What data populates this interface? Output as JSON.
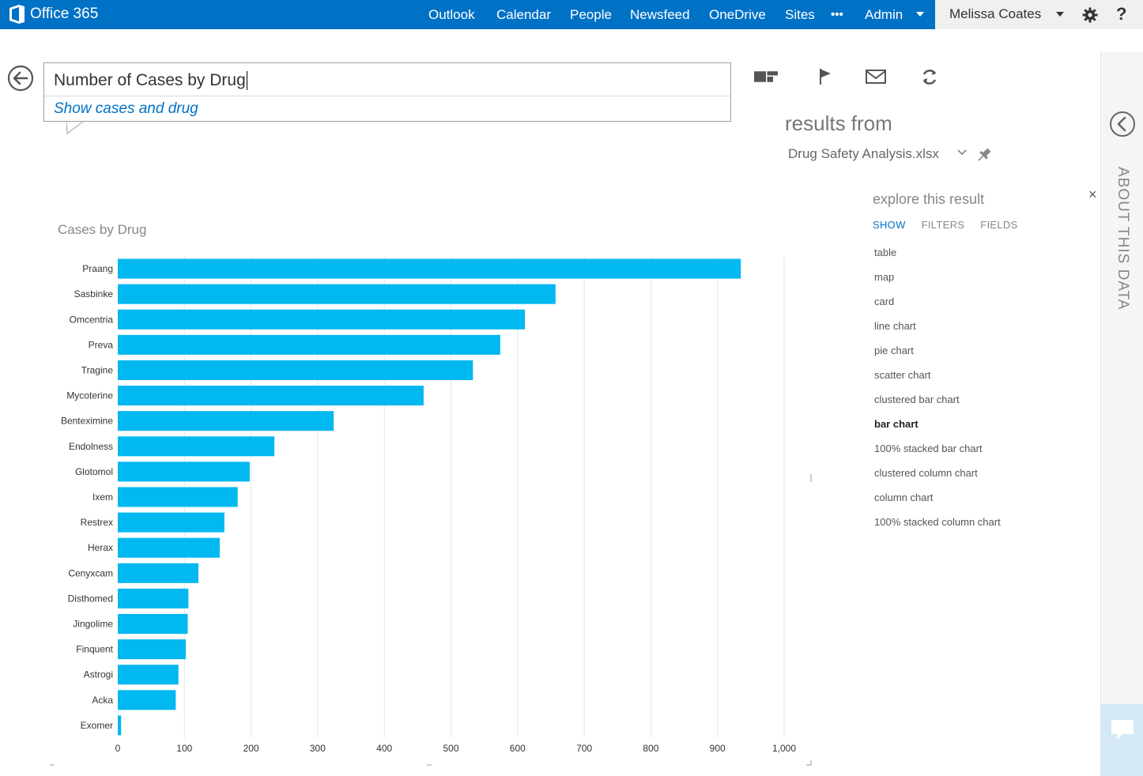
{
  "topbar": {
    "brand": "Office 365",
    "nav": [
      "Outlook",
      "Calendar",
      "People",
      "Newsfeed",
      "OneDrive",
      "Sites",
      "•••",
      "Admin"
    ],
    "user_name": "Melissa Coates",
    "help": "?"
  },
  "query": {
    "text": "Number of Cases by Drug",
    "suggestion": "Show cases and drug"
  },
  "results": {
    "heading": "results from",
    "source": "Drug Safety Analysis.xlsx"
  },
  "explore": {
    "title": "explore this result",
    "tabs": [
      "SHOW",
      "FILTERS",
      "FIELDS"
    ],
    "active_tab": "SHOW",
    "visualizations": [
      "table",
      "map",
      "card",
      "line chart",
      "pie chart",
      "scatter chart",
      "clustered bar chart",
      "bar chart",
      "100% stacked bar chart",
      "clustered column chart",
      "column chart",
      "100% stacked column chart"
    ],
    "selected": "bar chart",
    "close": "×"
  },
  "side_panel": {
    "label": "ABOUT THIS DATA"
  },
  "colors": {
    "brand": "#0072c6",
    "bar": "#01b8f0"
  },
  "chart_data": {
    "type": "bar",
    "orientation": "horizontal",
    "title": "Cases by Drug",
    "categories": [
      "Praang",
      "Sasbinke",
      "Omcentria",
      "Preva",
      "Tragine",
      "Mycoterine",
      "Benteximine",
      "Endolness",
      "Glotomol",
      "Ixem",
      "Restrex",
      "Herax",
      "Cenyxcam",
      "Disthomed",
      "Jingolime",
      "Finquent",
      "Astrogi",
      "Acka",
      "Exomer"
    ],
    "values": [
      935,
      657,
      611,
      574,
      533,
      459,
      324,
      235,
      198,
      180,
      160,
      153,
      121,
      106,
      105,
      102,
      91,
      87,
      5
    ],
    "xlim": [
      0,
      1000
    ],
    "xticks": [
      "0",
      "100",
      "200",
      "300",
      "400",
      "500",
      "600",
      "700",
      "800",
      "900",
      "1,000"
    ],
    "grid": true,
    "legend": "none"
  }
}
